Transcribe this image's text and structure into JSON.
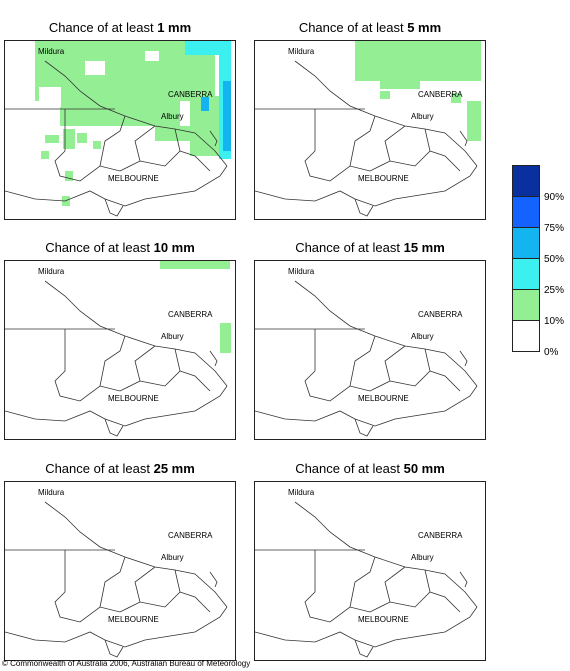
{
  "panels": [
    {
      "prefix": "Chance of at least ",
      "amount": "1 mm"
    },
    {
      "prefix": "Chance of at least ",
      "amount": "5 mm"
    },
    {
      "prefix": "Chance of at least ",
      "amount": "10 mm"
    },
    {
      "prefix": "Chance of at least ",
      "amount": "15 mm"
    },
    {
      "prefix": "Chance of at least ",
      "amount": "25 mm"
    },
    {
      "prefix": "Chance of at least ",
      "amount": "50 mm"
    }
  ],
  "cities": {
    "mildura": "Mildura",
    "canberra": "CANBERRA",
    "albury": "Albury",
    "melbourne": "MELBOURNE"
  },
  "legend": {
    "labels": [
      "90%",
      "75%",
      "50%",
      "25%",
      "10%",
      "0%"
    ],
    "colors": [
      "#0a2f9e",
      "#1463ff",
      "#14b4f0",
      "#3cf0f0",
      "#94ee94",
      "#ffffff"
    ]
  },
  "colors": {
    "green": "#94ee94",
    "cyan": "#3cf0f0",
    "blue": "#14b4f0"
  },
  "copyright": "© Commonwealth of Australia 2006, Australian Bureau of Meteorology"
}
